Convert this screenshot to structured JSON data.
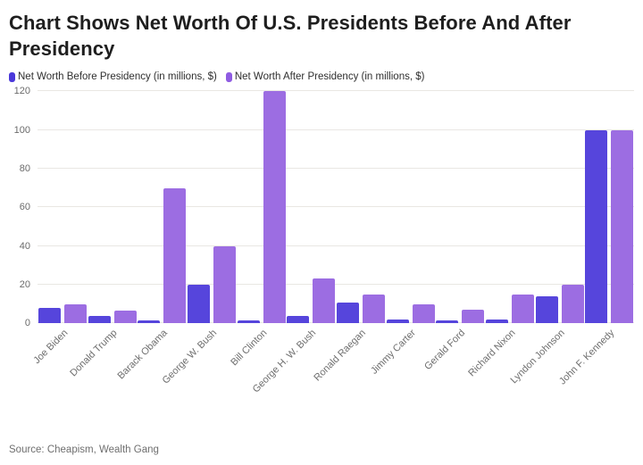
{
  "header": {
    "title": "Chart Shows Net Worth Of U.S. Presidents Before And After Presidency"
  },
  "legend": {
    "items": [
      {
        "label": "Net Worth Before Presidency (in millions, $)",
        "color": "#4a38da"
      },
      {
        "label": "Net Worth After Presidency (in millions, $)",
        "color": "#8f5ce2"
      }
    ]
  },
  "footer": {
    "source": "Source: Cheapism, Wealth Gang"
  },
  "chart_data": {
    "type": "bar",
    "title": "Chart Shows Net Worth Of U.S. Presidents Before And After Presidency",
    "categories": [
      "Joe Biden",
      "Donald Trump",
      "Barack Obama",
      "George W. Bush",
      "Bill Clinton",
      "George H. W. Bush",
      "Ronald Raegan",
      "Jimmy Carter",
      "Gerald Ford",
      "Richard Nixon",
      "Lyndon Johnson",
      "John F. Kennedy"
    ],
    "series": [
      {
        "name": "Net Worth Before Presidency (in millions, $)",
        "color": "#5645dc",
        "values": [
          8,
          4,
          1.3,
          20,
          1.3,
          4,
          10.5,
          2,
          1.3,
          2,
          14,
          100
        ]
      },
      {
        "name": "Net Worth After Presidency (in millions, $)",
        "color": "#9c6de2",
        "values": [
          10,
          6.5,
          70,
          40,
          120,
          23,
          15,
          10,
          7,
          15,
          20,
          100
        ]
      }
    ],
    "xlabel": "",
    "ylabel": "",
    "ylim": [
      0,
      120
    ],
    "yticks": [
      0,
      20,
      40,
      60,
      80,
      100,
      120
    ],
    "grid": true,
    "legend_position": "top-left",
    "x_tick_rotation_deg": -45
  }
}
